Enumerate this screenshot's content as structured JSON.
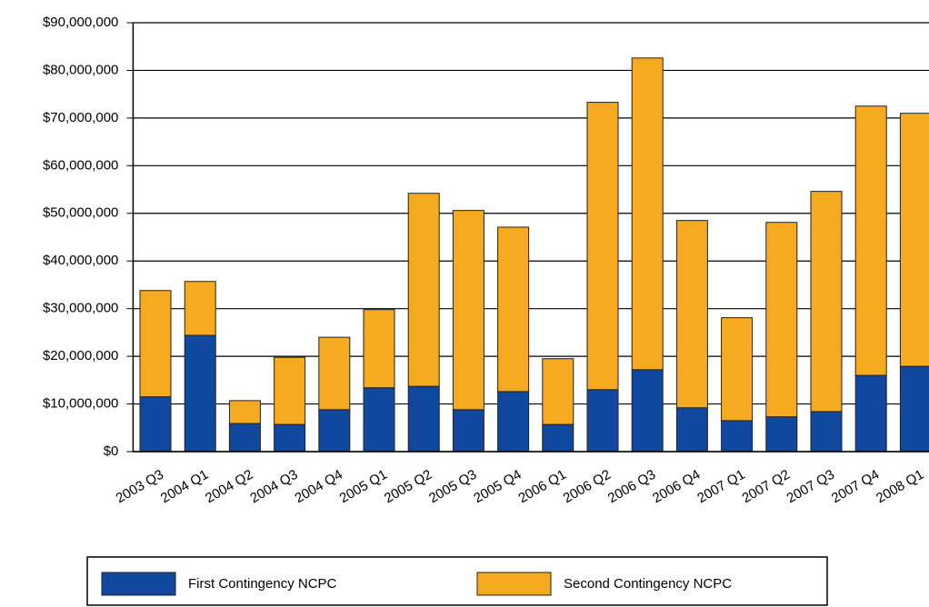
{
  "chart_data": {
    "type": "stacked-bar",
    "categories": [
      "2003 Q3",
      "2004 Q1",
      "2004 Q2",
      "2004 Q3",
      "2004 Q4",
      "2005 Q1",
      "2005 Q2",
      "2005 Q3",
      "2005 Q4",
      "2006 Q1",
      "2006 Q2",
      "2006 Q3",
      "2006 Q4",
      "2007 Q1",
      "2007 Q2",
      "2007 Q3",
      "2007 Q4",
      "2008 Q1"
    ],
    "series": [
      {
        "name": "First Contingency NCPC",
        "color": "#1048a0",
        "values": [
          11500000,
          24400000,
          5900000,
          5700000,
          8800000,
          13400000,
          13700000,
          8800000,
          12600000,
          5700000,
          13000000,
          17200000,
          9200000,
          6500000,
          7300000,
          8400000,
          16000000,
          17900000
        ]
      },
      {
        "name": "Second Contingency NCPC",
        "color": "#f5aa1f",
        "values": [
          22300000,
          11300000,
          4800000,
          14100000,
          15200000,
          16400000,
          40500000,
          41800000,
          34500000,
          13800000,
          60300000,
          65400000,
          39300000,
          21600000,
          40800000,
          46200000,
          56500000,
          53100000
        ]
      }
    ],
    "ylim": [
      0,
      90000000
    ],
    "yticks": [
      {
        "value": 0,
        "label": "$0"
      },
      {
        "value": 10000000,
        "label": "$10,000,000"
      },
      {
        "value": 20000000,
        "label": "$20,000,000"
      },
      {
        "value": 30000000,
        "label": "$30,000,000"
      },
      {
        "value": 40000000,
        "label": "$40,000,000"
      },
      {
        "value": 50000000,
        "label": "$50,000,000"
      },
      {
        "value": 60000000,
        "label": "$60,000,000"
      },
      {
        "value": 70000000,
        "label": "$70,000,000"
      },
      {
        "value": 80000000,
        "label": "$80,000,000"
      },
      {
        "value": 90000000,
        "label": "$90,000,000"
      }
    ],
    "grid": true,
    "legend": "bottom"
  }
}
